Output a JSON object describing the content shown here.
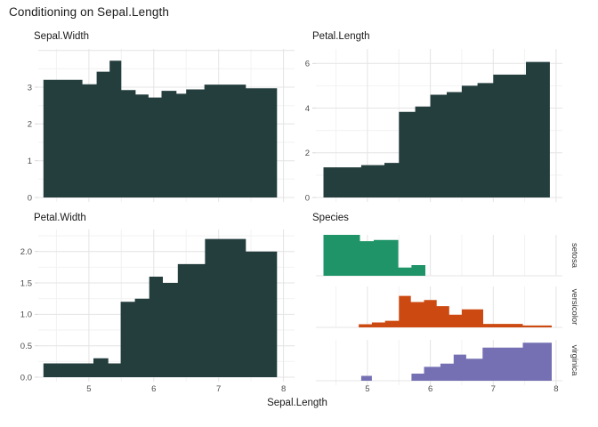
{
  "figure": {
    "title": "Conditioning on Sepal.Length",
    "xlabel": "Sepal.Length",
    "x_ticks": [
      {
        "v": 5,
        "label": "5"
      },
      {
        "v": 6,
        "label": "6"
      },
      {
        "v": 7,
        "label": "7"
      },
      {
        "v": 8,
        "label": "8"
      }
    ],
    "x_minor": [
      4.5,
      5.5,
      6.5,
      7.5
    ],
    "colors": {
      "bar_dark": "#243D3D",
      "setosa": "#1F9468",
      "versicolor": "#CC4A11",
      "virginica": "#7570B3",
      "grid_major": "#E4E4E4",
      "grid_minor": "#F2F2F2",
      "tick_stub": "#D8D8D8",
      "tick_label": "#4D4D4D",
      "strip_label": "#333333"
    }
  },
  "chart_data": [
    {
      "type": "area-step",
      "title": "Sepal.Width",
      "xlabel": "Sepal.Length",
      "ylim": [
        0,
        4.04
      ],
      "x_range_data": [
        4.3,
        7.9
      ],
      "show_x_labels": false,
      "y_ticks": [
        {
          "v": 0,
          "label": "0"
        },
        {
          "v": 1,
          "label": "1"
        },
        {
          "v": 2,
          "label": "2"
        },
        {
          "v": 3,
          "label": "3"
        }
      ],
      "y_grid_major": [
        0,
        1,
        2,
        3,
        4
      ],
      "y_grid_minor": [
        0.5,
        1.5,
        2.5,
        3.5
      ],
      "segments": [
        [
          4.3,
          4.9,
          3.2
        ],
        [
          4.9,
          5.12,
          3.08
        ],
        [
          5.12,
          5.32,
          3.42
        ],
        [
          5.32,
          5.5,
          3.72
        ],
        [
          5.5,
          5.72,
          2.92
        ],
        [
          5.72,
          5.92,
          2.8
        ],
        [
          5.92,
          6.12,
          2.72
        ],
        [
          6.12,
          6.35,
          2.9
        ],
        [
          6.35,
          6.5,
          2.82
        ],
        [
          6.5,
          6.78,
          2.94
        ],
        [
          6.78,
          7.42,
          3.07
        ],
        [
          7.42,
          7.9,
          2.97
        ]
      ]
    },
    {
      "type": "area-step",
      "title": "Petal.Length",
      "xlabel": "Sepal.Length",
      "ylim": [
        0,
        6.65
      ],
      "x_range_data": [
        4.3,
        7.9
      ],
      "show_x_labels": false,
      "y_ticks": [
        {
          "v": 0,
          "label": "0"
        },
        {
          "v": 2,
          "label": "2"
        },
        {
          "v": 4,
          "label": "4"
        },
        {
          "v": 6,
          "label": "6"
        }
      ],
      "y_grid_major": [
        0,
        2,
        4,
        6
      ],
      "y_grid_minor": [
        1,
        3,
        5
      ],
      "segments": [
        [
          4.3,
          4.9,
          1.35
        ],
        [
          4.9,
          5.27,
          1.45
        ],
        [
          5.27,
          5.5,
          1.55
        ],
        [
          5.5,
          5.76,
          3.83
        ],
        [
          5.76,
          6.0,
          4.07
        ],
        [
          6.0,
          6.26,
          4.6
        ],
        [
          6.26,
          6.5,
          4.72
        ],
        [
          6.5,
          6.75,
          5.0
        ],
        [
          6.75,
          7.0,
          5.12
        ],
        [
          7.0,
          7.52,
          5.5
        ],
        [
          7.52,
          7.9,
          6.07
        ]
      ]
    },
    {
      "type": "area-step",
      "title": "Petal.Width",
      "xlabel": "Sepal.Length",
      "ylim": [
        0,
        2.35
      ],
      "x_range_data": [
        4.3,
        7.9
      ],
      "show_x_labels": true,
      "y_ticks": [
        {
          "v": 0,
          "label": "0.0"
        },
        {
          "v": 0.5,
          "label": "0.5"
        },
        {
          "v": 1.0,
          "label": "1.0"
        },
        {
          "v": 1.5,
          "label": "1.5"
        },
        {
          "v": 2.0,
          "label": "2.0"
        }
      ],
      "y_grid_major": [
        0,
        0.5,
        1.0,
        1.5,
        2.0
      ],
      "y_grid_minor": [
        0.25,
        0.75,
        1.25,
        1.75,
        2.25
      ],
      "segments": [
        [
          4.3,
          5.07,
          0.22
        ],
        [
          5.07,
          5.3,
          0.3
        ],
        [
          5.3,
          5.49,
          0.22
        ],
        [
          5.49,
          5.71,
          1.2
        ],
        [
          5.71,
          5.93,
          1.25
        ],
        [
          5.93,
          6.14,
          1.6
        ],
        [
          6.14,
          6.37,
          1.5
        ],
        [
          6.37,
          6.79,
          1.8
        ],
        [
          6.79,
          7.42,
          2.2
        ],
        [
          7.42,
          7.9,
          2.0
        ]
      ]
    },
    {
      "type": "conditional-density-strips",
      "title": "Species",
      "xlabel": "Sepal.Length",
      "ylim": [
        0,
        1
      ],
      "show_x_labels": true,
      "strips": [
        {
          "name": "setosa",
          "color_key": "setosa",
          "segments": [
            [
              4.3,
              4.88,
              1.0
            ],
            [
              4.88,
              5.1,
              0.845
            ],
            [
              5.1,
              5.49,
              0.875
            ],
            [
              5.49,
              5.7,
              0.2
            ],
            [
              5.7,
              5.92,
              0.26
            ]
          ]
        },
        {
          "name": "versicolor",
          "color_key": "versicolor",
          "segments": [
            [
              4.86,
              5.07,
              0.077
            ],
            [
              5.07,
              5.28,
              0.12
            ],
            [
              5.28,
              5.5,
              0.16
            ],
            [
              5.5,
              5.69,
              0.77
            ],
            [
              5.69,
              5.9,
              0.62
            ],
            [
              5.9,
              6.1,
              0.67
            ],
            [
              6.1,
              6.3,
              0.52
            ],
            [
              6.3,
              6.5,
              0.31
            ],
            [
              6.5,
              6.84,
              0.44
            ],
            [
              6.84,
              7.47,
              0.085
            ],
            [
              7.47,
              7.93,
              0.045
            ]
          ]
        },
        {
          "name": "virginica",
          "color_key": "virginica",
          "segments": [
            [
              4.9,
              5.07,
              0.12
            ],
            [
              5.7,
              5.9,
              0.175
            ],
            [
              5.9,
              6.16,
              0.34
            ],
            [
              6.16,
              6.37,
              0.42
            ],
            [
              6.37,
              6.57,
              0.64
            ],
            [
              6.57,
              6.83,
              0.54
            ],
            [
              6.83,
              7.47,
              0.81
            ],
            [
              7.47,
              7.93,
              0.93
            ]
          ]
        }
      ]
    }
  ]
}
